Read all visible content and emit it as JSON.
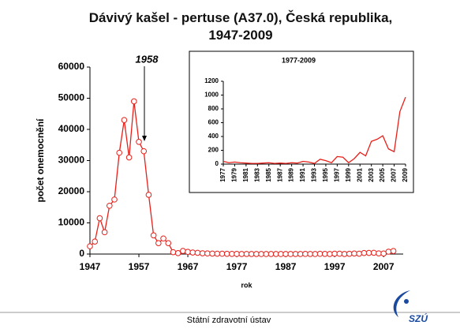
{
  "chart_data": [
    {
      "type": "line",
      "title": "Dávivý kašel - pertuse (A37.0), Česká republika, 1947-2009",
      "xlabel": "rok",
      "ylabel": "počet onemocnění",
      "annotation": "1958",
      "x": [
        1947,
        1948,
        1949,
        1950,
        1951,
        1952,
        1953,
        1954,
        1955,
        1956,
        1957,
        1958,
        1959,
        1960,
        1961,
        1962,
        1963,
        1964,
        1965,
        1966,
        1967,
        1968,
        1969,
        1970,
        1971,
        1972,
        1973,
        1974,
        1975,
        1976,
        1977,
        1978,
        1979,
        1980,
        1981,
        1982,
        1983,
        1984,
        1985,
        1986,
        1987,
        1988,
        1989,
        1990,
        1991,
        1992,
        1993,
        1994,
        1995,
        1996,
        1997,
        1998,
        1999,
        2000,
        2001,
        2002,
        2003,
        2004,
        2005,
        2006,
        2007,
        2008,
        2009
      ],
      "series": [
        {
          "color": "#e8201a",
          "values": [
            2500,
            4000,
            11500,
            7000,
            15500,
            17500,
            32500,
            43000,
            31000,
            49000,
            36000,
            33000,
            19000,
            6000,
            3500,
            5000,
            3500,
            600,
            300,
            1000,
            700,
            500,
            400,
            250,
            200,
            150,
            120,
            100,
            80,
            60,
            40,
            20,
            30,
            20,
            15,
            10,
            10,
            15,
            20,
            10,
            15,
            10,
            20,
            15,
            40,
            30,
            10,
            70,
            50,
            20,
            110,
            100,
            20,
            80,
            170,
            120,
            330,
            360,
            410,
            220,
            180,
            760,
            970
          ]
        }
      ],
      "xlim": [
        1947,
        2011
      ],
      "xticks": [
        1947,
        1957,
        1967,
        1977,
        1987,
        1997,
        2007
      ],
      "ylim": [
        0,
        60000
      ],
      "yticks": [
        0,
        10000,
        20000,
        30000,
        40000,
        50000,
        60000
      ],
      "markers": true,
      "grid": false
    },
    {
      "type": "line",
      "title": "1977-2009",
      "x": [
        1977,
        1978,
        1979,
        1980,
        1981,
        1982,
        1983,
        1984,
        1985,
        1986,
        1987,
        1988,
        1989,
        1990,
        1991,
        1992,
        1993,
        1994,
        1995,
        1996,
        1997,
        1998,
        1999,
        2000,
        2001,
        2002,
        2003,
        2004,
        2005,
        2006,
        2007,
        2008,
        2009
      ],
      "series": [
        {
          "color": "#e8201a",
          "values": [
            40,
            20,
            30,
            20,
            15,
            10,
            10,
            15,
            20,
            10,
            15,
            10,
            20,
            15,
            40,
            30,
            10,
            70,
            50,
            20,
            110,
            100,
            20,
            80,
            170,
            120,
            330,
            360,
            410,
            220,
            180,
            760,
            970
          ]
        }
      ],
      "xlim": [
        1977,
        2009
      ],
      "xticks": [
        1977,
        1979,
        1981,
        1983,
        1985,
        1987,
        1989,
        1991,
        1993,
        1995,
        1997,
        1999,
        2001,
        2003,
        2005,
        2007,
        2009
      ],
      "ylim": [
        0,
        1200
      ],
      "yticks": [
        0,
        200,
        400,
        600,
        800,
        1000,
        1200
      ],
      "markers": false,
      "grid": false
    }
  ],
  "footer": "Státní zdravotní ústav",
  "logo": "SZÚ"
}
